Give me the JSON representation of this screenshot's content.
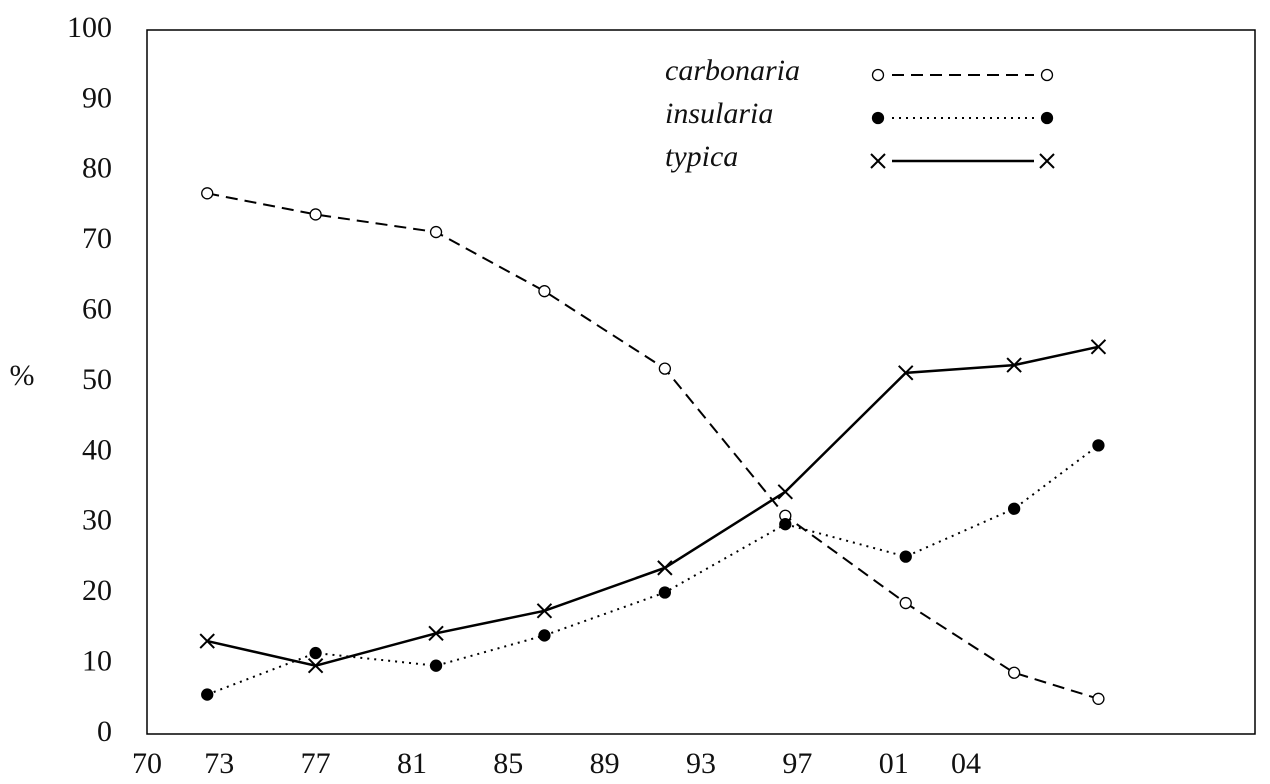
{
  "chart_data": {
    "type": "line",
    "ylabel": "%",
    "x": [
      1972.5,
      1977,
      1982,
      1986.5,
      1991.5,
      1996.5,
      2001.5,
      2006,
      2009.5
    ],
    "series": [
      {
        "name": "carbonaria",
        "color": "#000000",
        "line": "dashed",
        "marker": "open-circle",
        "values": [
          76.8,
          73.8,
          71.3,
          62.9,
          51.9,
          31.0,
          18.6,
          8.7,
          5.0
        ]
      },
      {
        "name": "insularia",
        "color": "#000000",
        "line": "dotted",
        "marker": "filled-circle",
        "values": [
          5.6,
          11.5,
          9.7,
          14.0,
          20.1,
          29.8,
          25.2,
          32.0,
          41.0
        ]
      },
      {
        "name": "typica",
        "color": "#000000",
        "line": "solid",
        "marker": "cross",
        "values": [
          13.2,
          9.7,
          14.3,
          17.5,
          23.6,
          34.4,
          51.3,
          52.4,
          55.0
        ]
      }
    ],
    "xlim": [
      1970,
      2016
    ],
    "xticks": [
      {
        "value": 1970,
        "label": "70"
      },
      {
        "value": 1973,
        "label": "73"
      },
      {
        "value": 1977,
        "label": "77"
      },
      {
        "value": 1981,
        "label": "81"
      },
      {
        "value": 1985,
        "label": "85"
      },
      {
        "value": 1989,
        "label": "89"
      },
      {
        "value": 1993,
        "label": "93"
      },
      {
        "value": 1997,
        "label": "97"
      },
      {
        "value": 2001,
        "label": "01"
      },
      {
        "value": 2004,
        "label": "04"
      }
    ],
    "ylim": [
      0,
      100
    ],
    "yticks": [
      0,
      10,
      20,
      30,
      40,
      50,
      60,
      70,
      80,
      90,
      100
    ],
    "grid": false,
    "legend": "top-right"
  }
}
